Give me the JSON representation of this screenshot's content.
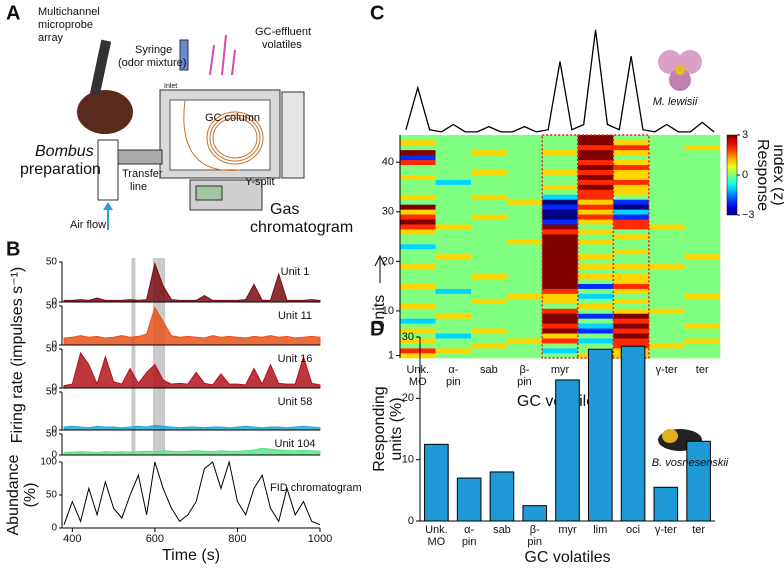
{
  "panel_labels": [
    "A",
    "B",
    "C",
    "D"
  ],
  "panel_a": {
    "probe": [
      "Multichannel",
      "microprobe",
      "array"
    ],
    "syringe": [
      "Syringe",
      "(odor mixture)"
    ],
    "effluent": [
      "GC-effluent",
      "volatiles"
    ],
    "inlet": "Inlet",
    "column": "GC column",
    "prep_genus": "Bombus",
    "prep": "preparation",
    "transfer": [
      "Transfer",
      "line"
    ],
    "ysplit": "Y-split",
    "airflow": "Air flow",
    "gc": [
      "Gas",
      "chromatogram"
    ]
  },
  "chart_data": [
    {
      "type": "heatmap",
      "categories": [
        [
          "Unk.",
          "MO"
        ],
        [
          "α-",
          "pin"
        ],
        [
          "sab"
        ],
        [
          "β-",
          "pin"
        ],
        [
          "myr"
        ],
        [
          "lim"
        ],
        [
          "oci"
        ],
        [
          "γ-ter"
        ],
        [
          "ter"
        ]
      ],
      "ylabel": "Units",
      "xlabel": "GC volatiles",
      "annotation": "M. lewisii",
      "ylim": [
        0.5,
        45.5
      ],
      "yticks": [
        1,
        10,
        20,
        30,
        40
      ],
      "colorbar_label": [
        "Response",
        "index (z)"
      ],
      "clim": [
        -3,
        3
      ],
      "cticks": [
        3,
        0,
        {
          "value": -3,
          "label": "−3"
        }
      ],
      "highlight_columns": [
        4,
        5,
        6
      ],
      "highlight_color": "#d62728",
      "trace": [
        5,
        45,
        5,
        3,
        10,
        3,
        3,
        8,
        3,
        3,
        8,
        3,
        5,
        70,
        5,
        10,
        100,
        10,
        5,
        75,
        5,
        3,
        10,
        3,
        3,
        12,
        3
      ],
      "trace_lim": [
        0,
        100
      ],
      "values": [
        [
          1,
          0,
          0,
          0,
          0,
          1,
          1,
          0,
          0
        ],
        [
          2,
          1,
          0,
          0,
          -1,
          0,
          1,
          0,
          0
        ],
        [
          0,
          0,
          1,
          0,
          0,
          0,
          2,
          1,
          0
        ],
        [
          1,
          0,
          0,
          1,
          2,
          -1,
          2,
          0,
          1
        ],
        [
          0,
          -1,
          0,
          0,
          1,
          0,
          3,
          0,
          0
        ],
        [
          1,
          0,
          1,
          0,
          3,
          -2,
          2,
          0,
          0
        ],
        [
          0,
          0,
          0,
          0,
          2,
          -1,
          3,
          0,
          1
        ],
        [
          -1,
          0,
          0,
          0,
          3,
          0,
          2,
          0,
          0
        ],
        [
          0,
          1,
          0,
          0,
          3,
          -2,
          3,
          0,
          0
        ],
        [
          0,
          0,
          0,
          0,
          2,
          0,
          1,
          1,
          0
        ],
        [
          1,
          0,
          0,
          0,
          0,
          1,
          0,
          0,
          0
        ],
        [
          0,
          0,
          1,
          0,
          1,
          0,
          1,
          0,
          0
        ],
        [
          0,
          0,
          0,
          1,
          1,
          -1,
          0,
          0,
          1
        ],
        [
          0,
          -1,
          0,
          0,
          2,
          0,
          1,
          0,
          0
        ],
        [
          1,
          0,
          0,
          0,
          3,
          -2,
          2,
          0,
          0
        ],
        [
          0,
          0,
          0,
          0,
          3,
          0,
          1,
          0,
          0
        ],
        [
          0,
          0,
          1,
          0,
          3,
          1,
          1,
          0,
          0
        ],
        [
          0,
          0,
          0,
          0,
          3,
          0,
          0,
          0,
          0
        ],
        [
          1,
          0,
          0,
          0,
          3,
          1,
          1,
          1,
          0
        ],
        [
          0,
          0,
          0,
          0,
          3,
          0,
          0,
          0,
          0
        ],
        [
          0,
          1,
          0,
          0,
          3,
          1,
          0,
          0,
          1
        ],
        [
          0,
          0,
          0,
          0,
          3,
          0,
          1,
          0,
          0
        ],
        [
          -1,
          0,
          0,
          0,
          3,
          0,
          0,
          0,
          0
        ],
        [
          0,
          0,
          0,
          1,
          3,
          1,
          0,
          0,
          0
        ],
        [
          0,
          0,
          0,
          0,
          3,
          0,
          1,
          0,
          0
        ],
        [
          1,
          0,
          0,
          0,
          2,
          1,
          0,
          0,
          0
        ],
        [
          2,
          1,
          0,
          0,
          3,
          0,
          2,
          1,
          0
        ],
        [
          3,
          0,
          0,
          0,
          -2,
          1,
          2,
          0,
          0
        ],
        [
          2,
          0,
          1,
          0,
          -3,
          2,
          -2,
          0,
          0
        ],
        [
          1,
          0,
          0,
          0,
          -3,
          1,
          -1,
          0,
          0
        ],
        [
          3,
          0,
          0,
          0,
          -2,
          2,
          -3,
          0,
          0
        ],
        [
          0,
          0,
          0,
          1,
          -3,
          1,
          -2,
          0,
          0
        ],
        [
          1,
          0,
          1,
          0,
          -1,
          2,
          0,
          0,
          0
        ],
        [
          0,
          0,
          0,
          0,
          0,
          2,
          1,
          0,
          0
        ],
        [
          0,
          0,
          0,
          0,
          1,
          3,
          1,
          0,
          0
        ],
        [
          0,
          -1,
          0,
          0,
          0,
          2,
          2,
          0,
          0
        ],
        [
          1,
          0,
          0,
          0,
          0,
          3,
          1,
          0,
          0
        ],
        [
          0,
          0,
          1,
          0,
          1,
          2,
          1,
          0,
          0
        ],
        [
          0,
          0,
          0,
          0,
          0,
          3,
          2,
          0,
          0
        ],
        [
          2,
          0,
          0,
          0,
          0,
          2,
          1,
          0,
          0
        ],
        [
          -2,
          0,
          0,
          0,
          0,
          3,
          0,
          0,
          0
        ],
        [
          3,
          0,
          1,
          0,
          1,
          3,
          1,
          0,
          0
        ],
        [
          0,
          0,
          0,
          0,
          0,
          2,
          2,
          0,
          1
        ],
        [
          1,
          0,
          0,
          0,
          0,
          3,
          1,
          0,
          0
        ],
        [
          0,
          0,
          0,
          0,
          0,
          3,
          0,
          0,
          0
        ]
      ]
    },
    {
      "type": "bar",
      "categories": [
        [
          "Unk.",
          "MO"
        ],
        [
          "α-",
          "pin"
        ],
        [
          "sab"
        ],
        [
          "β-",
          "pin"
        ],
        [
          "myr"
        ],
        [
          "lim"
        ],
        [
          "oci"
        ],
        [
          "γ-ter"
        ],
        [
          "ter"
        ]
      ],
      "values": [
        12.5,
        7,
        8,
        2.5,
        23,
        28,
        28.5,
        5.5,
        13
      ],
      "color": "#1f9ad6",
      "ylim": [
        0,
        30
      ],
      "yticks": [
        0,
        10,
        20,
        30
      ],
      "ylabel": [
        "Responding",
        "units (%)"
      ],
      "xlabel": "GC volatiles",
      "annotation": "B. vosnesenskii"
    },
    {
      "type": "line",
      "x": [
        380,
        400,
        420,
        440,
        460,
        480,
        500,
        520,
        540,
        560,
        580,
        600,
        620,
        640,
        660,
        680,
        700,
        720,
        740,
        760,
        780,
        800,
        820,
        840,
        860,
        880,
        900,
        920,
        940,
        960,
        980,
        1000
      ],
      "xlim": [
        375,
        1000
      ],
      "xticks": [
        400,
        600,
        800,
        1000
      ],
      "xlabel": "Time (s)",
      "ylabel": "Firing rate (impulses s⁻¹)",
      "ylim": [
        0,
        50
      ],
      "yticks": [
        0,
        50
      ],
      "highlight_x": [
        548,
        600,
        610,
        620
      ],
      "series": [
        {
          "name": "Unit 1",
          "color": "#7a0d12",
          "values": [
            2,
            2,
            3,
            2,
            5,
            2,
            2,
            2,
            3,
            2,
            3,
            48,
            20,
            3,
            2,
            2,
            2,
            8,
            2,
            2,
            2,
            2,
            3,
            22,
            2,
            2,
            35,
            2,
            2,
            2,
            3,
            2
          ]
        },
        {
          "name": "Unit 11",
          "color": "#e8531c",
          "values": [
            9,
            10,
            12,
            10,
            11,
            9,
            10,
            12,
            10,
            11,
            14,
            48,
            30,
            12,
            10,
            11,
            10,
            9,
            12,
            10,
            11,
            10,
            9,
            11,
            10,
            12,
            10,
            11,
            9,
            10,
            11,
            10
          ]
        },
        {
          "name": "Unit 16",
          "color": "#b0141c",
          "values": [
            3,
            5,
            45,
            30,
            5,
            40,
            8,
            5,
            25,
            6,
            20,
            30,
            10,
            5,
            6,
            5,
            20,
            6,
            4,
            18,
            5,
            5,
            4,
            25,
            5,
            30,
            6,
            5,
            5,
            40,
            6,
            4
          ]
        },
        {
          "name": "Unit 58",
          "color": "#2aa7d6",
          "values": [
            4,
            5,
            4,
            3,
            5,
            4,
            4,
            3,
            4,
            5,
            4,
            6,
            5,
            4,
            3,
            4,
            4,
            3,
            4,
            4,
            3,
            4,
            5,
            4,
            3,
            4,
            4,
            3,
            4,
            5,
            4,
            3
          ]
        },
        {
          "name": "Unit 104",
          "color": "#5fe08a",
          "values": [
            6,
            7,
            8,
            7,
            6,
            8,
            7,
            8,
            7,
            8,
            9,
            8,
            10,
            9,
            8,
            9,
            10,
            9,
            8,
            10,
            9,
            9,
            10,
            12,
            16,
            14,
            12,
            11,
            10,
            11,
            10,
            9
          ]
        }
      ],
      "fid": {
        "name": "FID chromatogram",
        "ylabel": [
          "Abundance",
          "(%)"
        ],
        "ylim": [
          0,
          100
        ],
        "yticks": [
          0,
          50,
          100
        ],
        "color": "#000000",
        "values": [
          5,
          40,
          10,
          60,
          20,
          70,
          30,
          15,
          50,
          80,
          20,
          100,
          60,
          30,
          10,
          20,
          40,
          90,
          100,
          60,
          100,
          40,
          20,
          60,
          80,
          30,
          10,
          60,
          20,
          40,
          10,
          5
        ]
      }
    }
  ]
}
